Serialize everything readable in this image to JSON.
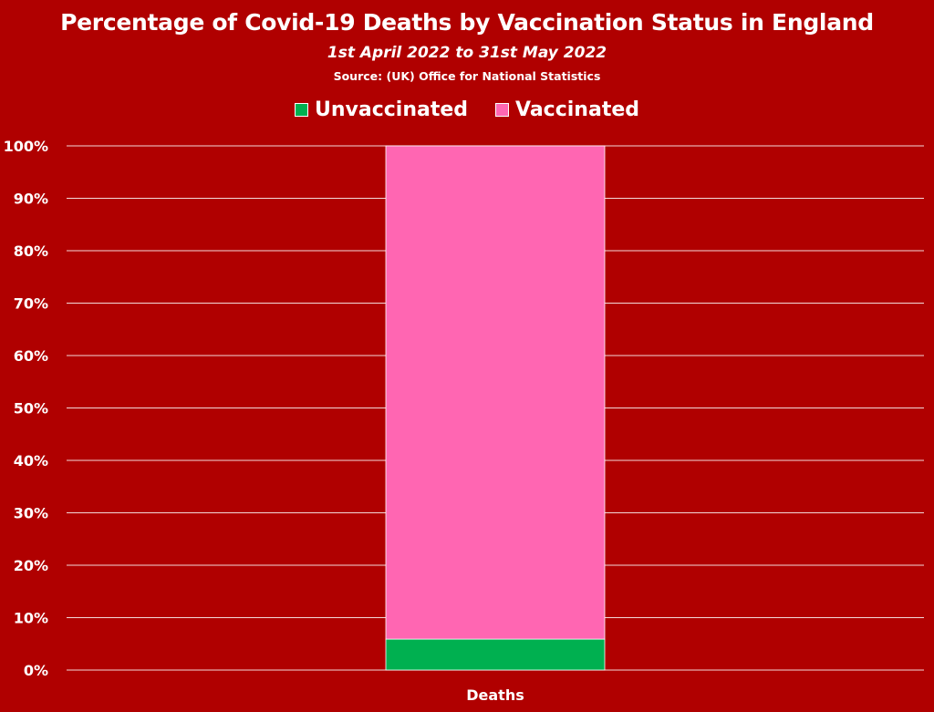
{
  "colors": {
    "background": "#b00000",
    "unvaccinated": "#00b050",
    "vaccinated": "#ff66b2",
    "gridline": "#ffffff",
    "text": "#ffffff"
  },
  "chart_data": {
    "type": "bar",
    "stacked": true,
    "title": "Percentage of Covid-19 Deaths by Vaccination Status in England",
    "subtitle": "1st April 2022 to 31st May 2022",
    "source": "Source: (UK) Office for National Statistics",
    "categories": [
      "Deaths"
    ],
    "series": [
      {
        "name": "Unvaccinated",
        "values": [
          5.9
        ]
      },
      {
        "name": "Vaccinated",
        "values": [
          94.1
        ]
      }
    ],
    "ylim": [
      0,
      100
    ],
    "yticks": [
      "0%",
      "10%",
      "20%",
      "30%",
      "40%",
      "50%",
      "60%",
      "70%",
      "80%",
      "90%",
      "100%"
    ],
    "grid": true,
    "legend": "top-center"
  }
}
